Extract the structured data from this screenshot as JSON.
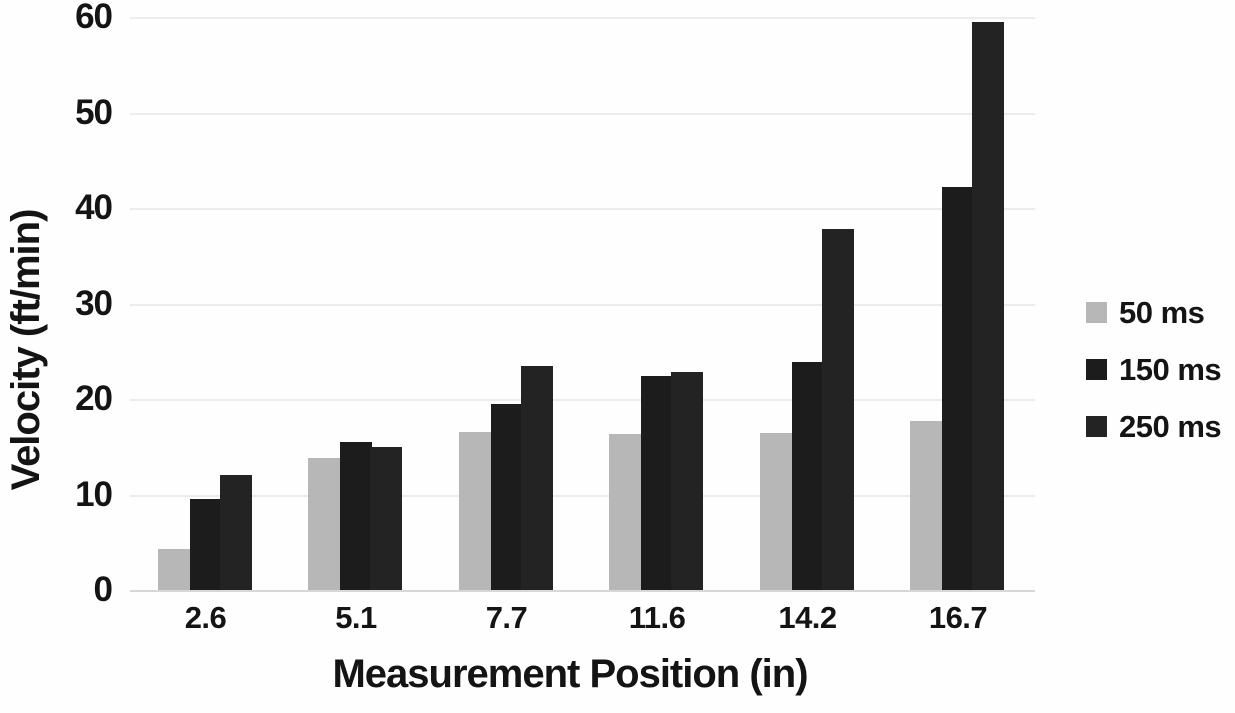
{
  "chart_data": {
    "type": "bar",
    "title": "",
    "xlabel": "Measurement Position (in)",
    "ylabel": "Velocity (ft/min)",
    "categories": [
      "2.6",
      "5.1",
      "7.7",
      "11.6",
      "14.2",
      "16.7"
    ],
    "series": [
      {
        "name": "50 ms",
        "color": "#b7b7b7",
        "values": [
          4.3,
          13.8,
          16.5,
          16.3,
          16.4,
          17.7
        ]
      },
      {
        "name": "150 ms",
        "color": "#1c1c1c",
        "values": [
          9.5,
          15.5,
          19.5,
          22.4,
          23.9,
          42.2
        ]
      },
      {
        "name": "250 ms",
        "color": "#232323",
        "values": [
          12.0,
          15.0,
          23.5,
          22.8,
          37.8,
          59.5
        ]
      }
    ],
    "ylim": [
      0,
      60
    ],
    "ytick_step": 10,
    "yticks": [
      "0",
      "10",
      "20",
      "30",
      "40",
      "50",
      "60"
    ],
    "grid": "horizontal-faint",
    "legend_position": "right"
  },
  "colors": {
    "background": "#fefefe",
    "gridline": "#ececec",
    "baseline": "#d7d7d7",
    "text": "#141414"
  }
}
